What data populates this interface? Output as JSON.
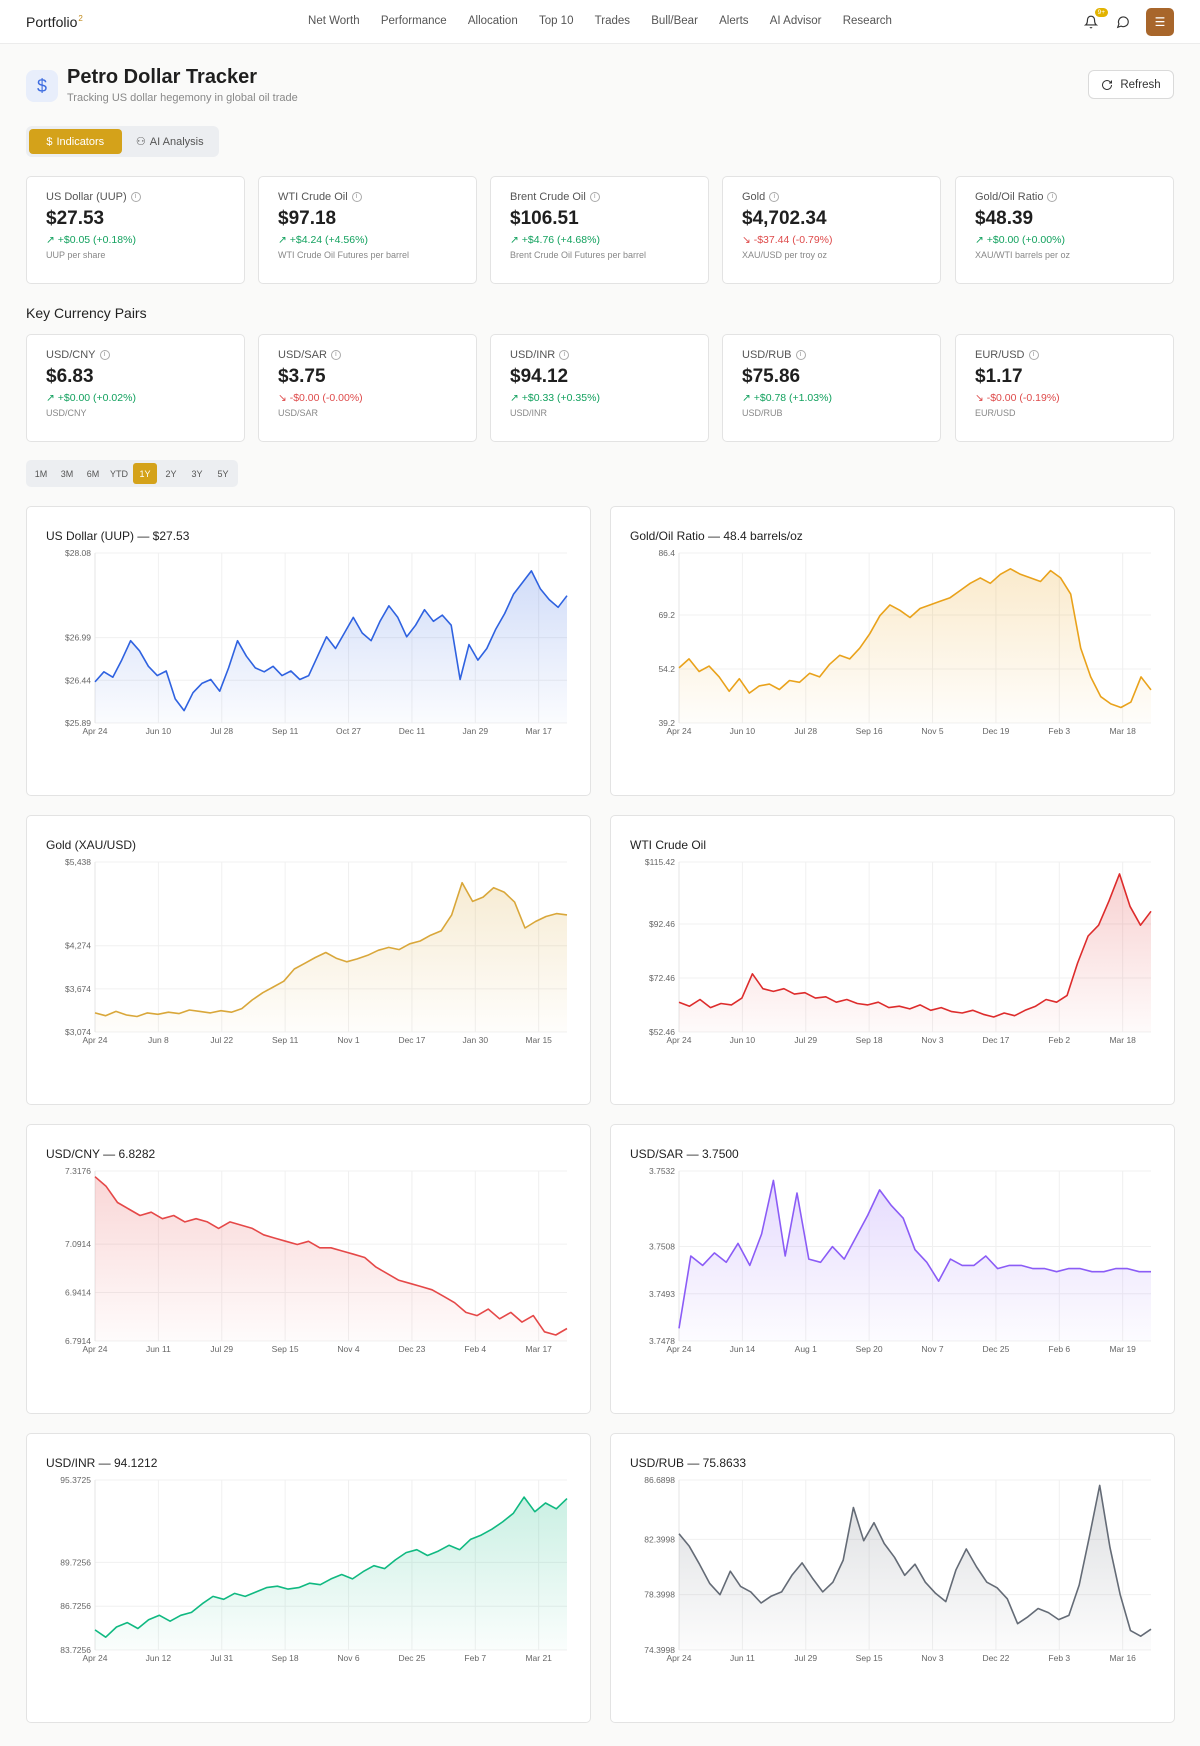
{
  "nav": {
    "brand": "Portfolio",
    "brand_sup": "2",
    "links": [
      "Net Worth",
      "Performance",
      "Allocation",
      "Top 10",
      "Trades",
      "Bull/Bear",
      "Alerts",
      "AI Advisor",
      "Research"
    ],
    "badge": "9+",
    "menu_icon": "hamburger-icon"
  },
  "header": {
    "title": "Petro Dollar Tracker",
    "subtitle": "Tracking US dollar hegemony in global oil trade",
    "refresh_label": "Refresh"
  },
  "tabs": [
    {
      "label": "Indicators",
      "active": true
    },
    {
      "label": "AI Analysis",
      "active": false
    }
  ],
  "indicators": [
    {
      "label": "US Dollar (UUP)",
      "value": "$27.53",
      "change": "+$0.05 (+0.18%)",
      "dir": "pos",
      "sub": "UUP per share"
    },
    {
      "label": "WTI Crude Oil",
      "value": "$97.18",
      "change": "+$4.24 (+4.56%)",
      "dir": "pos",
      "sub": "WTI Crude Oil Futures per barrel"
    },
    {
      "label": "Brent Crude Oil",
      "value": "$106.51",
      "change": "+$4.76 (+4.68%)",
      "dir": "pos",
      "sub": "Brent Crude Oil Futures per barrel"
    },
    {
      "label": "Gold",
      "value": "$4,702.34",
      "change": "-$37.44 (-0.79%)",
      "dir": "neg",
      "sub": "XAU/USD per troy oz"
    },
    {
      "label": "Gold/Oil Ratio",
      "value": "$48.39",
      "change": "+$0.00 (+0.00%)",
      "dir": "pos",
      "sub": "XAU/WTI barrels per oz"
    }
  ],
  "currency_section_title": "Key Currency Pairs",
  "currencies": [
    {
      "label": "USD/CNY",
      "value": "$6.83",
      "change": "+$0.00 (+0.02%)",
      "dir": "pos",
      "sub": "USD/CNY"
    },
    {
      "label": "USD/SAR",
      "value": "$3.75",
      "change": "-$0.00 (-0.00%)",
      "dir": "neg",
      "sub": "USD/SAR"
    },
    {
      "label": "USD/INR",
      "value": "$94.12",
      "change": "+$0.33 (+0.35%)",
      "dir": "pos",
      "sub": "USD/INR"
    },
    {
      "label": "USD/RUB",
      "value": "$75.86",
      "change": "+$0.78 (+1.03%)",
      "dir": "pos",
      "sub": "USD/RUB"
    },
    {
      "label": "EUR/USD",
      "value": "$1.17",
      "change": "-$0.00 (-0.19%)",
      "dir": "neg",
      "sub": "EUR/USD"
    }
  ],
  "ranges": [
    {
      "label": "1M",
      "active": false
    },
    {
      "label": "3M",
      "active": false
    },
    {
      "label": "6M",
      "active": false
    },
    {
      "label": "YTD",
      "active": false
    },
    {
      "label": "1Y",
      "active": true
    },
    {
      "label": "2Y",
      "active": false
    },
    {
      "label": "3Y",
      "active": false
    },
    {
      "label": "5Y",
      "active": false
    }
  ],
  "chart_data": [
    {
      "type": "area",
      "title": "US Dollar (UUP) — $27.53",
      "color": "#2f62e0",
      "yticks": [
        "$28.08",
        "$26.99",
        "$26.44",
        "$25.89"
      ],
      "ytick_vals": [
        28.08,
        26.99,
        26.44,
        25.89
      ],
      "ylim": [
        25.89,
        28.08
      ],
      "xticks": [
        "Apr 24",
        "Jun 10",
        "Jul 28",
        "Sep 11",
        "Oct 27",
        "Dec 11",
        "Jan 29",
        "Mar 17"
      ],
      "values": [
        26.42,
        26.55,
        26.48,
        26.7,
        26.95,
        26.82,
        26.62,
        26.5,
        26.56,
        26.2,
        26.05,
        26.28,
        26.4,
        26.45,
        26.3,
        26.6,
        26.95,
        26.75,
        26.6,
        26.55,
        26.62,
        26.5,
        26.56,
        26.45,
        26.5,
        26.75,
        27.0,
        26.85,
        27.05,
        27.25,
        27.05,
        26.95,
        27.2,
        27.4,
        27.25,
        27.0,
        27.15,
        27.35,
        27.2,
        27.28,
        27.15,
        26.45,
        26.9,
        26.7,
        26.85,
        27.1,
        27.3,
        27.55,
        27.7,
        27.85,
        27.62,
        27.48,
        27.38,
        27.53
      ]
    },
    {
      "type": "area",
      "title": "Gold/Oil Ratio — 48.4 barrels/oz",
      "color": "#e9a21b",
      "yticks": [
        "86.4",
        "69.2",
        "54.2",
        "39.2"
      ],
      "ytick_vals": [
        86.4,
        69.2,
        54.2,
        39.2
      ],
      "ylim": [
        39.2,
        86.4
      ],
      "xticks": [
        "Apr 24",
        "Jun 10",
        "Jul 28",
        "Sep 16",
        "Nov 5",
        "Dec 19",
        "Feb 3",
        "Mar 18"
      ],
      "values": [
        54.5,
        57.0,
        53.5,
        55.0,
        52.0,
        48.0,
        51.5,
        47.5,
        49.5,
        50.0,
        48.5,
        51.0,
        50.5,
        53.0,
        52.0,
        55.5,
        58.0,
        57.0,
        60.0,
        64.0,
        69.0,
        72.0,
        70.5,
        68.5,
        71.0,
        72.0,
        73.0,
        74.0,
        76.0,
        78.0,
        79.5,
        78.0,
        80.5,
        82.0,
        80.5,
        79.5,
        78.5,
        81.5,
        79.5,
        75.0,
        60.0,
        52.0,
        46.5,
        44.5,
        43.5,
        45.0,
        52.0,
        48.4
      ]
    },
    {
      "type": "area",
      "title": "Gold (XAU/USD)",
      "color": "#d9a73a",
      "yticks": [
        "$5,438",
        "$4,274",
        "$3,674",
        "$3,074"
      ],
      "ytick_vals": [
        5438,
        4274,
        3674,
        3074
      ],
      "ylim": [
        3074,
        5438
      ],
      "xticks": [
        "Apr 24",
        "Jun 8",
        "Jul 22",
        "Sep 11",
        "Nov 1",
        "Dec 17",
        "Jan 30",
        "Mar 15"
      ],
      "values": [
        3340,
        3300,
        3360,
        3310,
        3290,
        3340,
        3320,
        3350,
        3330,
        3380,
        3360,
        3340,
        3370,
        3350,
        3400,
        3520,
        3620,
        3700,
        3780,
        3950,
        4030,
        4110,
        4180,
        4100,
        4050,
        4090,
        4140,
        4210,
        4250,
        4220,
        4300,
        4340,
        4420,
        4480,
        4700,
        5150,
        4890,
        4950,
        5080,
        5020,
        4880,
        4520,
        4610,
        4680,
        4720,
        4702
      ]
    },
    {
      "type": "area",
      "title": "WTI Crude Oil",
      "color": "#dd2c2c",
      "yticks": [
        "$115.42",
        "$92.46",
        "$72.46",
        "$52.46"
      ],
      "ytick_vals": [
        115.42,
        92.46,
        72.46,
        52.46
      ],
      "ylim": [
        52.46,
        115.42
      ],
      "xticks": [
        "Apr 24",
        "Jun 10",
        "Jul 29",
        "Sep 18",
        "Nov 3",
        "Dec 17",
        "Feb 2",
        "Mar 18"
      ],
      "values": [
        63.5,
        62.0,
        64.5,
        61.5,
        63.0,
        62.5,
        65.0,
        74.0,
        68.5,
        67.5,
        68.5,
        66.5,
        67.0,
        65.0,
        65.5,
        63.5,
        64.5,
        63.0,
        62.5,
        63.5,
        61.5,
        62.0,
        61.0,
        62.5,
        60.5,
        61.5,
        60.0,
        59.5,
        60.5,
        59.0,
        58.0,
        59.5,
        58.5,
        60.5,
        62.0,
        64.5,
        63.5,
        66.0,
        78.0,
        88.0,
        92.0,
        101.0,
        111.0,
        99.0,
        92.0,
        97.18
      ]
    },
    {
      "type": "area",
      "title": "USD/CNY — 6.8282",
      "color": "#e54848",
      "yticks": [
        "7.3176",
        "7.0914",
        "6.9414",
        "6.7914"
      ],
      "ytick_vals": [
        7.3176,
        7.0914,
        6.9414,
        6.7914
      ],
      "ylim": [
        6.7914,
        7.3176
      ],
      "xticks": [
        "Apr 24",
        "Jun 11",
        "Jul 29",
        "Sep 15",
        "Nov 4",
        "Dec 23",
        "Feb 4",
        "Mar 17"
      ],
      "values": [
        7.3,
        7.27,
        7.22,
        7.2,
        7.18,
        7.19,
        7.17,
        7.18,
        7.16,
        7.17,
        7.16,
        7.14,
        7.16,
        7.15,
        7.14,
        7.12,
        7.11,
        7.1,
        7.09,
        7.1,
        7.08,
        7.08,
        7.07,
        7.06,
        7.05,
        7.02,
        7.0,
        6.98,
        6.97,
        6.96,
        6.95,
        6.93,
        6.91,
        6.88,
        6.87,
        6.89,
        6.86,
        6.88,
        6.85,
        6.87,
        6.82,
        6.81,
        6.83
      ]
    },
    {
      "type": "area",
      "title": "USD/SAR — 3.7500",
      "color": "#8b5cf6",
      "yticks": [
        "3.7532",
        "3.7508",
        "3.7493",
        "3.7478"
      ],
      "ytick_vals": [
        3.7532,
        3.7508,
        3.7493,
        3.7478
      ],
      "ylim": [
        3.7478,
        3.7532
      ],
      "xticks": [
        "Apr 24",
        "Jun 14",
        "Aug 1",
        "Sep 20",
        "Nov 7",
        "Dec 25",
        "Feb 6",
        "Mar 19"
      ],
      "values": [
        3.7482,
        3.7505,
        3.7502,
        3.7506,
        3.7503,
        3.7509,
        3.7502,
        3.7512,
        3.7529,
        3.7505,
        3.7525,
        3.7504,
        3.7503,
        3.7508,
        3.7504,
        3.7511,
        3.7518,
        3.7526,
        3.7521,
        3.7517,
        3.7507,
        3.7503,
        3.7497,
        3.7504,
        3.7502,
        3.7502,
        3.7505,
        3.7501,
        3.7502,
        3.7502,
        3.7501,
        3.7501,
        3.75,
        3.7501,
        3.7501,
        3.75,
        3.75,
        3.7501,
        3.7501,
        3.75,
        3.75
      ]
    },
    {
      "type": "area",
      "title": "USD/INR — 94.1212",
      "color": "#10b981",
      "yticks": [
        "95.3725",
        "89.7256",
        "86.7256",
        "83.7256"
      ],
      "ytick_vals": [
        95.3725,
        89.7256,
        86.7256,
        83.7256
      ],
      "ylim": [
        83.7256,
        95.3725
      ],
      "xticks": [
        "Apr 24",
        "Jun 12",
        "Jul 31",
        "Sep 18",
        "Nov 6",
        "Dec 25",
        "Feb 7",
        "Mar 21"
      ],
      "values": [
        85.1,
        84.6,
        85.3,
        85.6,
        85.2,
        85.8,
        86.1,
        85.7,
        86.1,
        86.3,
        86.9,
        87.4,
        87.2,
        87.6,
        87.4,
        87.7,
        88.0,
        88.1,
        87.9,
        88.0,
        88.3,
        88.2,
        88.6,
        88.9,
        88.6,
        89.1,
        89.5,
        89.3,
        89.9,
        90.4,
        90.6,
        90.2,
        90.5,
        90.9,
        90.6,
        91.3,
        91.6,
        92.0,
        92.5,
        93.1,
        94.2,
        93.2,
        93.8,
        93.4,
        94.1
      ]
    },
    {
      "type": "area",
      "title": "USD/RUB — 75.8633",
      "color": "#646b76",
      "yticks": [
        "86.6898",
        "82.3998",
        "78.3998",
        "74.3998"
      ],
      "ytick_vals": [
        86.6898,
        82.3998,
        78.3998,
        74.3998
      ],
      "ylim": [
        74.3998,
        86.6898
      ],
      "xticks": [
        "Apr 24",
        "Jun 11",
        "Jul 29",
        "Sep 15",
        "Nov 3",
        "Dec 22",
        "Feb 3",
        "Mar 16"
      ],
      "values": [
        82.8,
        81.9,
        80.6,
        79.2,
        78.4,
        80.1,
        79.0,
        78.6,
        77.8,
        78.3,
        78.6,
        79.8,
        80.7,
        79.6,
        78.6,
        79.3,
        80.9,
        84.7,
        82.3,
        83.6,
        82.1,
        81.1,
        79.8,
        80.6,
        79.3,
        78.5,
        77.9,
        80.2,
        81.7,
        80.4,
        79.3,
        78.9,
        78.1,
        76.3,
        76.8,
        77.4,
        77.1,
        76.6,
        76.9,
        79.1,
        82.6,
        86.3,
        81.8,
        78.4,
        75.8,
        75.4,
        75.9
      ]
    }
  ]
}
